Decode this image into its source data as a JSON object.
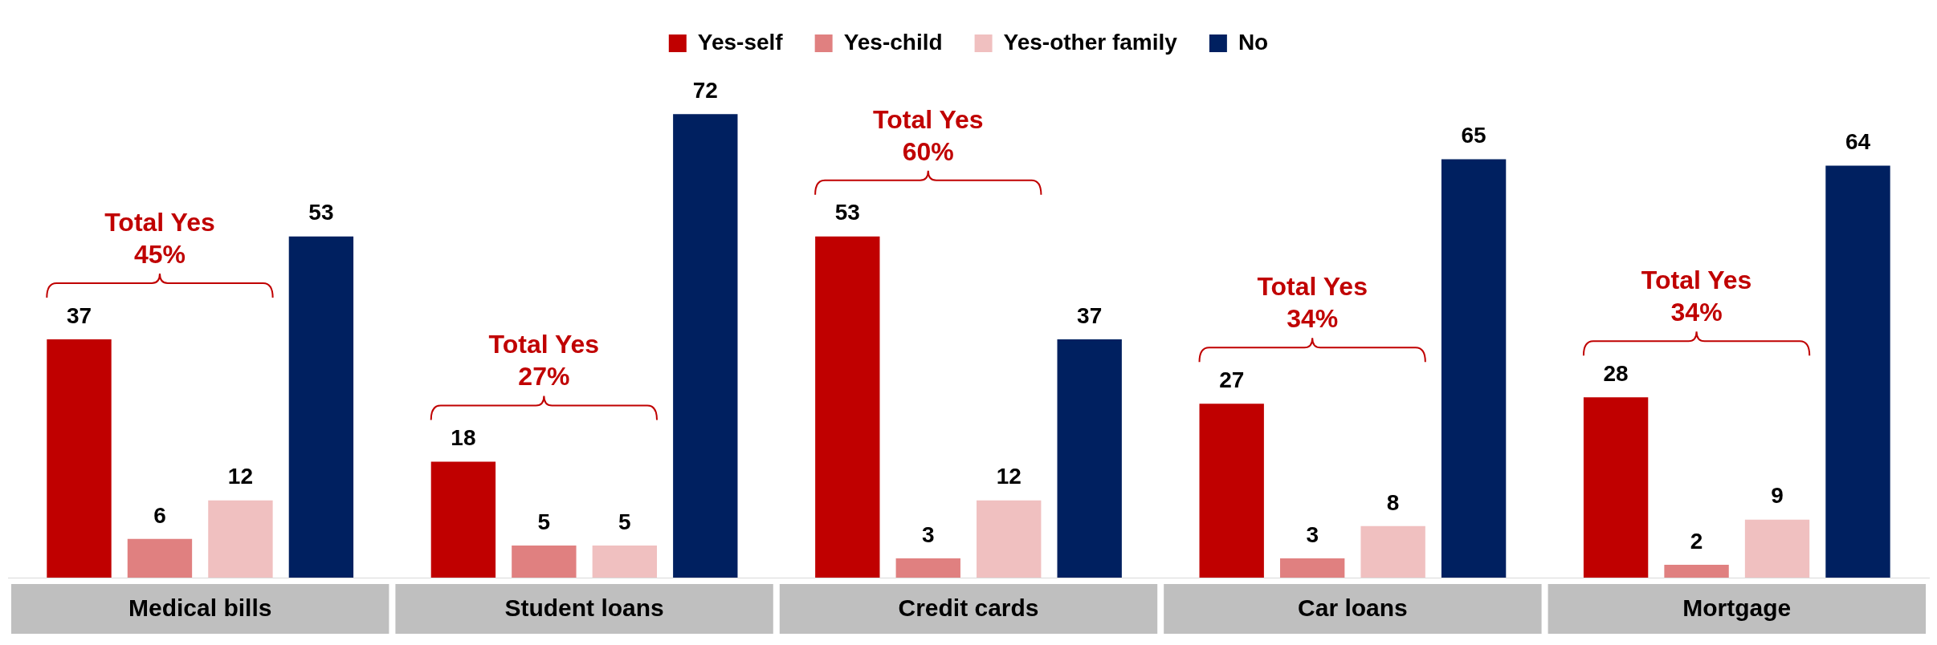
{
  "chart_data": {
    "type": "bar",
    "categories": [
      "Medical bills",
      "Student loans",
      "Credit cards",
      "Car loans",
      "Mortgage"
    ],
    "series": [
      {
        "name": "Yes-self",
        "color": "#c00000",
        "values": [
          37,
          18,
          53,
          27,
          28
        ]
      },
      {
        "name": "Yes-child",
        "color": "#e08080",
        "values": [
          6,
          5,
          3,
          3,
          2
        ]
      },
      {
        "name": "Yes-other family",
        "color": "#f0c0c0",
        "values": [
          12,
          5,
          12,
          8,
          9
        ]
      },
      {
        "name": "No",
        "color": "#002060",
        "values": [
          53,
          72,
          37,
          65,
          64
        ]
      }
    ],
    "annotations": [
      "Total Yes\n45%",
      "Total Yes\n27%",
      "Total Yes\n60%",
      "Total Yes\n34%",
      "Total Yes\n34%"
    ],
    "data_labels": true,
    "legend": "top",
    "grid": false
  }
}
